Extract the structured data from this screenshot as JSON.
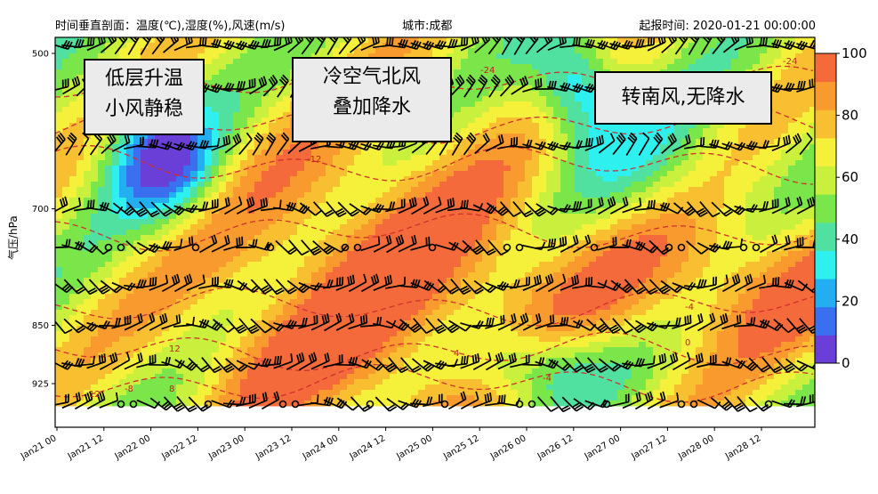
{
  "header": {
    "left": "时间垂直剖面：温度(℃),湿度(%),风速(m/s)",
    "center": "城市:成都",
    "right": "起报时间: 2020-01-21 00:00:00"
  },
  "chart_data": {
    "type": "heatmap",
    "ylabel": "气压/hPa",
    "y_ticks": [
      500,
      700,
      850,
      925
    ],
    "x_ticks": [
      "Jan21 00",
      "Jan21 12",
      "Jan22 00",
      "Jan22 12",
      "Jan23 00",
      "Jan23 12",
      "Jan24 00",
      "Jan24 12",
      "Jan25 00",
      "Jan25 12",
      "Jan26 00",
      "Jan26 12",
      "Jan27 00",
      "Jan27 12",
      "Jan28 00",
      "Jan28 12"
    ],
    "colorbar": {
      "ticks": [
        0,
        20,
        40,
        60,
        80,
        100
      ],
      "range": [
        0,
        100
      ],
      "colors": [
        "#6a3fd8",
        "#3a6ff0",
        "#22aef0",
        "#2ef0ee",
        "#50e0a0",
        "#7ae64a",
        "#c8f03c",
        "#f5f03a",
        "#f8c030",
        "#f89a2e",
        "#f56a3a"
      ]
    },
    "temperature_contour_labels": [
      "-24",
      "-24",
      "-12",
      "-8",
      "-4",
      "-4",
      "0",
      "4",
      "8",
      "12",
      "12"
    ],
    "annotations": [
      "低层升温",
      "小风静稳",
      "冷空气北风",
      "叠加降水",
      "转南风,无降水"
    ]
  }
}
